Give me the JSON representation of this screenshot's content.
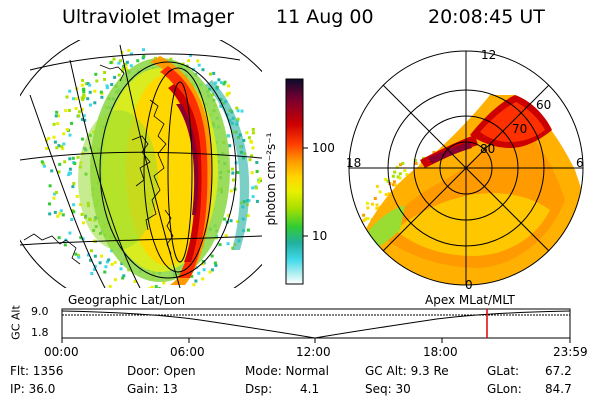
{
  "header": {
    "instrument": "Ultraviolet Imager",
    "date": "11 Aug 00",
    "time": "20:08:45 UT"
  },
  "colorbar": {
    "label": "photon cm⁻²s⁻¹",
    "ticks": [
      "100",
      "10"
    ],
    "colors": [
      "#0b0b2e",
      "#8a0030",
      "#cc0000",
      "#ff4000",
      "#ff9900",
      "#ffd700",
      "#e8f000",
      "#a8e000",
      "#33cc33",
      "#22b0a0",
      "#40d8e8",
      "#b0f0f0",
      "#ffffff"
    ]
  },
  "left_panel": {
    "label": "Geographic Lat/Lon"
  },
  "right_panel": {
    "label": "Apex MLat/MLT",
    "mlt_labels": [
      "12",
      "18",
      "6",
      "0"
    ],
    "lat_labels": [
      "60",
      "70",
      "80"
    ]
  },
  "altitude_plot": {
    "ylabel": "GC Alt",
    "yticks": [
      "9.0",
      "1.8"
    ],
    "xticks": [
      "00:00",
      "06:00",
      "12:00",
      "18:00",
      "23:59"
    ],
    "marker_color": "#e00000"
  },
  "info": {
    "flt": "Flt: 1356",
    "ip": "IP: 36.0",
    "door": "Door: Open",
    "gain": "Gain: 13",
    "mode": "Mode: Normal",
    "dsp_label": "Dsp:",
    "dsp_value": "4.1",
    "gc_alt": "GC Alt: 9.3 Re",
    "seq": "Seq: 30",
    "glat_label": "GLat:",
    "glat_value": "67.2",
    "glon_label": "GLon:",
    "glon_value": "84.7"
  }
}
